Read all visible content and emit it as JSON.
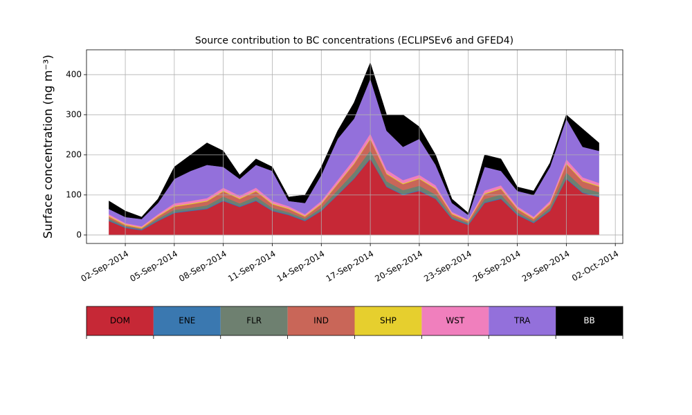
{
  "chart_data": {
    "type": "stacked_area",
    "title": "Source contribution to BC concentrations (ECLIPSEv6 and GFED4)",
    "y_label": "Surface concentration (ng m⁻³)",
    "x": [
      "2014-09-01",
      "2014-09-02",
      "2014-09-03",
      "2014-09-04",
      "2014-09-05",
      "2014-09-06",
      "2014-09-07",
      "2014-09-08",
      "2014-09-09",
      "2014-09-10",
      "2014-09-11",
      "2014-09-12",
      "2014-09-13",
      "2014-09-14",
      "2014-09-15",
      "2014-09-16",
      "2014-09-17",
      "2014-09-18",
      "2014-09-19",
      "2014-09-20",
      "2014-09-21",
      "2014-09-22",
      "2014-09-23",
      "2014-09-24",
      "2014-09-25",
      "2014-09-26",
      "2014-09-27",
      "2014-09-28",
      "2014-09-29",
      "2014-09-30",
      "2014-10-01"
    ],
    "series": [
      {
        "name": "DOM",
        "color": "#c62836",
        "values": [
          35,
          18,
          12,
          35,
          55,
          60,
          65,
          85,
          70,
          85,
          60,
          50,
          35,
          60,
          100,
          140,
          190,
          120,
          100,
          110,
          90,
          40,
          25,
          80,
          90,
          50,
          30,
          60,
          140,
          105,
          95
        ]
      },
      {
        "name": "ENE",
        "color": "#3a78b0",
        "values": [
          2,
          2,
          2,
          2,
          2,
          2,
          2,
          2,
          2,
          2,
          2,
          2,
          2,
          2,
          2,
          2,
          2,
          2,
          2,
          2,
          2,
          2,
          2,
          2,
          2,
          2,
          2,
          2,
          2,
          2,
          2
        ]
      },
      {
        "name": "FLR",
        "color": "#6e8070",
        "values": [
          4,
          2,
          1,
          4,
          6,
          6,
          7,
          9,
          7,
          9,
          6,
          5,
          4,
          6,
          10,
          14,
          19,
          12,
          10,
          11,
          9,
          4,
          3,
          8,
          9,
          5,
          3,
          6,
          14,
          11,
          10
        ]
      },
      {
        "name": "IND",
        "color": "#c96658",
        "values": [
          5,
          3,
          2,
          5,
          8,
          9,
          10,
          13,
          11,
          13,
          9,
          8,
          5,
          9,
          15,
          21,
          28,
          18,
          15,
          17,
          14,
          6,
          4,
          12,
          14,
          8,
          5,
          9,
          21,
          16,
          14
        ]
      },
      {
        "name": "SHP",
        "color": "#e6cf2e",
        "values": [
          2,
          2,
          2,
          2,
          2,
          2,
          2,
          2,
          2,
          2,
          2,
          2,
          2,
          2,
          2,
          2,
          2,
          2,
          2,
          2,
          2,
          2,
          2,
          2,
          2,
          2,
          2,
          2,
          2,
          2,
          2
        ]
      },
      {
        "name": "WST",
        "color": "#f07fbd",
        "values": [
          4,
          3,
          3,
          4,
          6,
          6,
          6,
          7,
          6,
          7,
          6,
          5,
          4,
          6,
          8,
          10,
          12,
          9,
          8,
          8,
          7,
          4,
          3,
          7,
          7,
          5,
          4,
          6,
          10,
          8,
          7
        ]
      },
      {
        "name": "TRA",
        "color": "#9370db",
        "values": [
          13,
          15,
          18,
          28,
          61,
          75,
          83,
          52,
          42,
          57,
          75,
          13,
          28,
          65,
          103,
          101,
          137,
          97,
          83,
          90,
          51,
          22,
          11,
          59,
          36,
          38,
          54,
          85,
          101,
          76,
          80
        ]
      },
      {
        "name": "BB",
        "color": "#000000",
        "values": [
          20,
          15,
          5,
          10,
          30,
          40,
          55,
          40,
          10,
          15,
          10,
          10,
          20,
          20,
          20,
          40,
          40,
          40,
          80,
          30,
          25,
          10,
          5,
          30,
          30,
          10,
          10,
          10,
          10,
          45,
          20
        ]
      }
    ],
    "xlim": [
      "2014-08-30T15:00",
      "2014-10-02T11:00"
    ],
    "xticks": [
      {
        "value": "2014-09-02",
        "label": "02-Sep-2014"
      },
      {
        "value": "2014-09-05",
        "label": "05-Sep-2014"
      },
      {
        "value": "2014-09-08",
        "label": "08-Sep-2014"
      },
      {
        "value": "2014-09-11",
        "label": "11-Sep-2014"
      },
      {
        "value": "2014-09-14",
        "label": "14-Sep-2014"
      },
      {
        "value": "2014-09-17",
        "label": "17-Sep-2014"
      },
      {
        "value": "2014-09-20",
        "label": "20-Sep-2014"
      },
      {
        "value": "2014-09-23",
        "label": "23-Sep-2014"
      },
      {
        "value": "2014-09-26",
        "label": "26-Sep-2014"
      },
      {
        "value": "2014-09-29",
        "label": "29-Sep-2014"
      },
      {
        "value": "2014-10-02",
        "label": "02-Oct-2014"
      }
    ],
    "ylim": [
      -21,
      462
    ],
    "yticks": [
      0,
      100,
      200,
      300,
      400
    ],
    "grid": true
  }
}
